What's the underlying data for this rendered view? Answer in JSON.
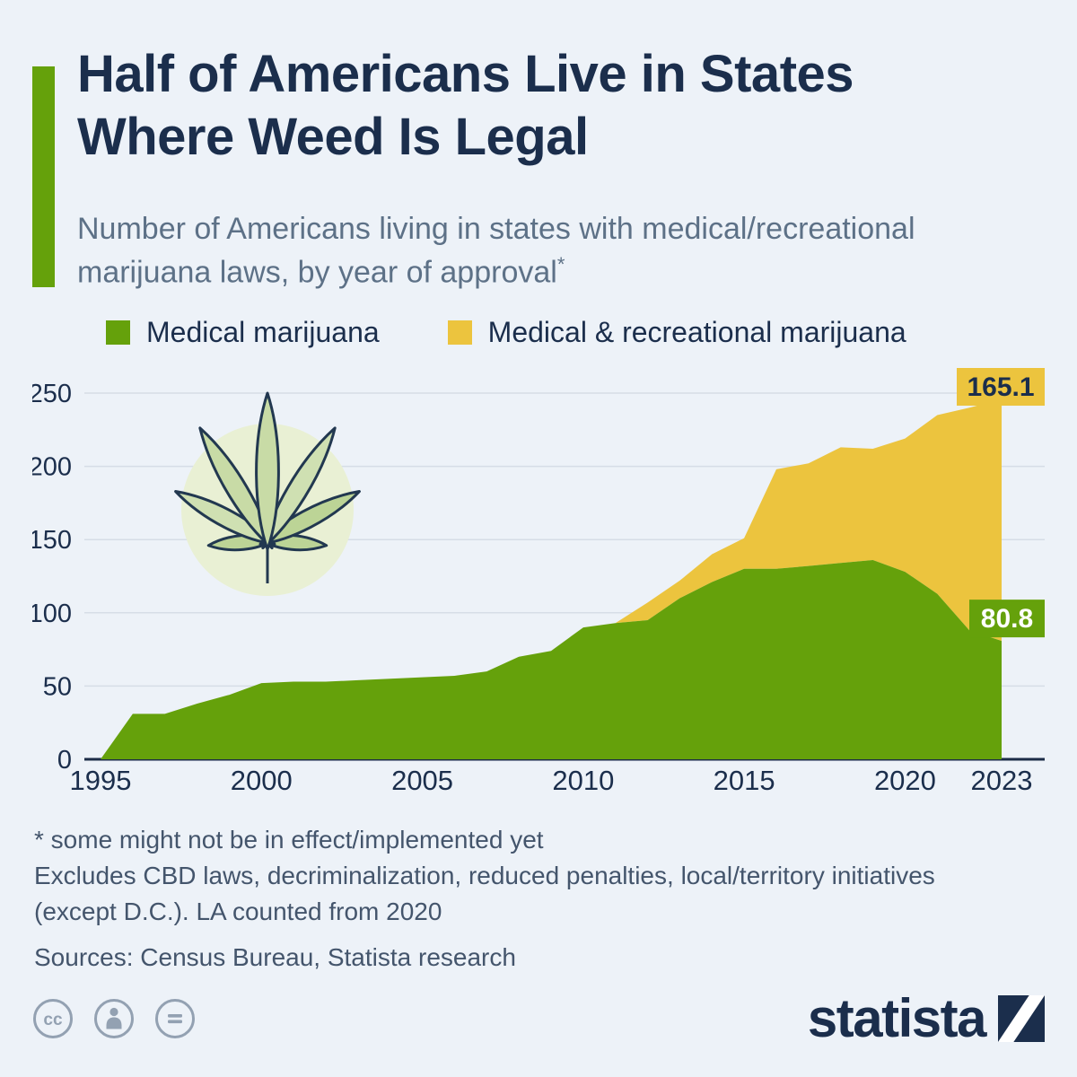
{
  "theme": {
    "green": "#65a10b",
    "yellow": "#ecc43e",
    "navy": "#1b2e4c",
    "background": "#edf2f8",
    "gridline": "#d6dde6"
  },
  "header": {
    "title_line1": "Half of Americans Live in States",
    "title_line2": "Where Weed Is Legal",
    "subtitle": "Number of Americans living in states with medical/recreational marijuana laws, by year of approval",
    "footnote_marker": "*"
  },
  "legend": [
    {
      "label": "Medical marijuana",
      "color": "#65a10b"
    },
    {
      "label": "Medical & recreational marijuana",
      "color": "#ecc43e"
    }
  ],
  "chart_data": {
    "type": "area",
    "stacked": true,
    "title": "Number of Americans living in states with medical/recreational marijuana laws, by year of approval",
    "x": [
      1995,
      1996,
      1997,
      1998,
      1999,
      2000,
      2001,
      2002,
      2003,
      2004,
      2005,
      2006,
      2007,
      2008,
      2009,
      2010,
      2011,
      2012,
      2013,
      2014,
      2015,
      2016,
      2017,
      2018,
      2019,
      2020,
      2021,
      2022,
      2023
    ],
    "series": [
      {
        "name": "Medical marijuana",
        "color": "#65a10b",
        "values": [
          0,
          31,
          31,
          38,
          44,
          52,
          53,
          53,
          54,
          55,
          56,
          57,
          60,
          70,
          74,
          90,
          93,
          95,
          110,
          121,
          130,
          130,
          132,
          134,
          136,
          128,
          113,
          88,
          80.8
        ]
      },
      {
        "name": "Medical & recreational marijuana",
        "color": "#ecc43e",
        "values": [
          0,
          0,
          0,
          0,
          0,
          0,
          0,
          0,
          0,
          0,
          0,
          0,
          0,
          0,
          0,
          0,
          0,
          12,
          12,
          19,
          21,
          68,
          70,
          79,
          76,
          91,
          122,
          152,
          165.1
        ]
      }
    ],
    "ylim": [
      0,
      250
    ],
    "yticks": [
      0,
      50,
      100,
      150,
      200,
      250
    ],
    "xticks": [
      1995,
      2000,
      2005,
      2010,
      2015,
      2020,
      2023
    ],
    "legend_position": "top",
    "grid": true,
    "end_labels": [
      {
        "series": "Medical & recreational marijuana",
        "value": "165.1",
        "box_color": "#ecc43e",
        "text_color": "#1b2e4c"
      },
      {
        "series": "Medical marijuana",
        "value": "80.8",
        "box_color": "#65a10b",
        "text_color": "#ffffff"
      }
    ]
  },
  "footnotes": {
    "lines": [
      "* some might not be in effect/implemented yet",
      "Excludes CBD laws, decriminalization, reduced penalties, local/territory initiatives",
      "(except D.C.). LA counted from 2020"
    ],
    "sources": "Sources: Census Bureau, Statista research"
  },
  "branding": {
    "statista": "statista",
    "cc_glyph": "cc"
  }
}
